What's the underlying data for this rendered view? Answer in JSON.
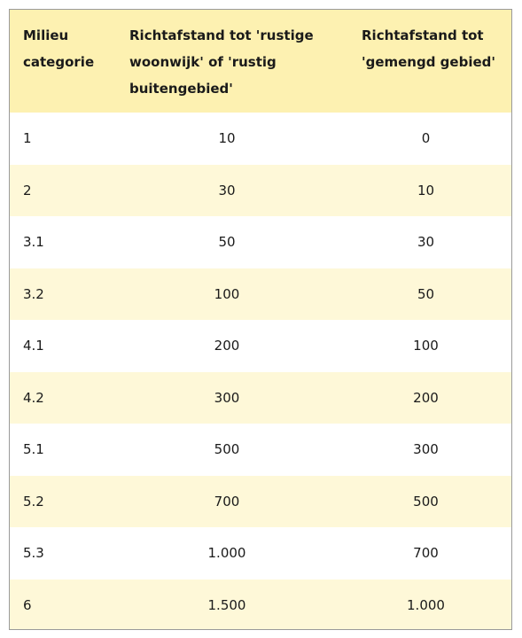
{
  "table": {
    "headers": [
      "Milieu categorie",
      "Richtafstand tot 'rustige woonwijk' of 'rustig buitengebied'",
      "Richtafstand tot 'gemengd gebied'"
    ],
    "rows": [
      [
        "1",
        "10",
        "0"
      ],
      [
        "2",
        "30",
        "10"
      ],
      [
        "3.1",
        "50",
        "30"
      ],
      [
        "3.2",
        "100",
        "50"
      ],
      [
        "4.1",
        "200",
        "100"
      ],
      [
        "4.2",
        "300",
        "200"
      ],
      [
        "5.1",
        "500",
        "300"
      ],
      [
        "5.2",
        "700",
        "500"
      ],
      [
        "5.3",
        "1.000",
        "700"
      ],
      [
        "6",
        "1.500",
        "1.000"
      ]
    ]
  },
  "colors": {
    "header_bg": "#fdf1b1",
    "even_row_bg": "#fef8d8",
    "odd_row_bg": "#ffffff",
    "border": "#9a9a9a"
  }
}
